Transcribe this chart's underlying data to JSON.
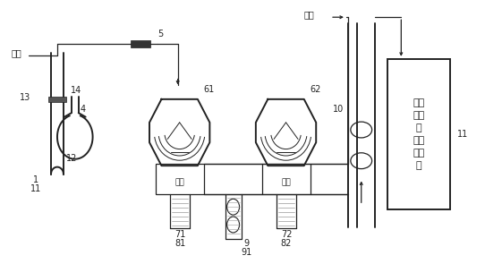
{
  "bg_color": "#ffffff",
  "fig_width": 5.42,
  "fig_height": 2.95,
  "dpi": 100,
  "labels": {
    "1": "1",
    "11_left": "11",
    "12": "12",
    "13": "13",
    "14": "14",
    "4": "4",
    "5": "5",
    "61": "61",
    "62": "62",
    "9": "9",
    "71": "71",
    "72": "72",
    "81": "81",
    "82": "82",
    "91": "91",
    "10": "10",
    "11_right": "11",
    "heqi_top": "氮气",
    "heqi_left": "氮气",
    "heqi_61": "氮气",
    "heqi_62": "氮气",
    "irms": "气体\n同位\n素\n比値\n质谱\n仪"
  }
}
